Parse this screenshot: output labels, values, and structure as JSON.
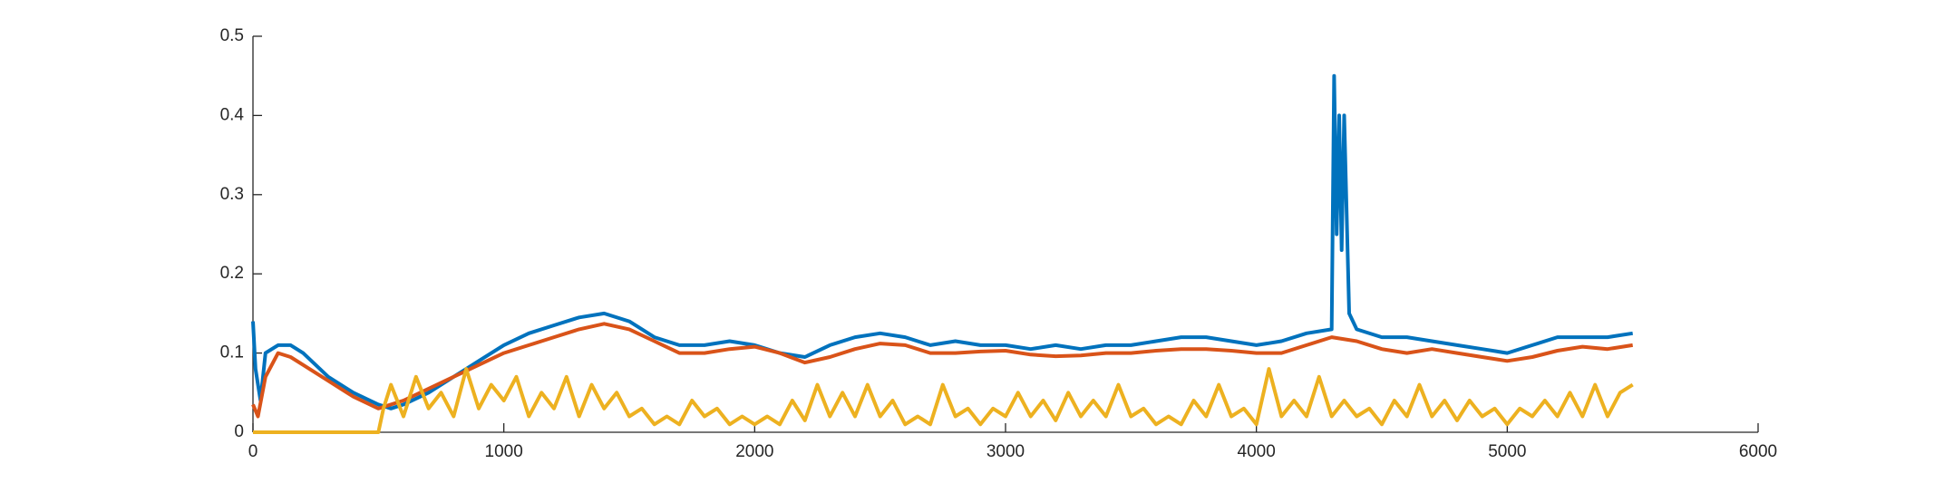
{
  "chart_data": {
    "type": "line",
    "xlim": [
      0,
      6000
    ],
    "xticks": [
      0,
      1000,
      2000,
      3000,
      4000,
      5000,
      6000
    ],
    "ylim": [
      0,
      0.5
    ],
    "yticks": [
      0,
      0.1,
      0.2,
      0.3,
      0.4,
      0.5
    ],
    "series": [
      {
        "color": "#0072bd",
        "x": [
          0,
          10,
          30,
          50,
          100,
          150,
          200,
          300,
          400,
          500,
          550,
          600,
          700,
          800,
          900,
          1000,
          1100,
          1200,
          1300,
          1400,
          1500,
          1600,
          1700,
          1800,
          1900,
          2000,
          2100,
          2200,
          2300,
          2400,
          2500,
          2600,
          2700,
          2800,
          2900,
          3000,
          3100,
          3200,
          3300,
          3400,
          3500,
          3600,
          3700,
          3800,
          3900,
          4000,
          4100,
          4200,
          4300,
          4310,
          4320,
          4330,
          4340,
          4350,
          4370,
          4400,
          4500,
          4600,
          4700,
          4800,
          4900,
          5000,
          5100,
          5200,
          5300,
          5400,
          5500
        ],
        "values": [
          0.14,
          0.08,
          0.04,
          0.1,
          0.11,
          0.11,
          0.1,
          0.07,
          0.05,
          0.035,
          0.03,
          0.035,
          0.05,
          0.07,
          0.09,
          0.11,
          0.125,
          0.135,
          0.145,
          0.15,
          0.14,
          0.12,
          0.11,
          0.11,
          0.115,
          0.11,
          0.1,
          0.095,
          0.11,
          0.12,
          0.125,
          0.12,
          0.11,
          0.115,
          0.11,
          0.11,
          0.105,
          0.11,
          0.105,
          0.11,
          0.11,
          0.115,
          0.12,
          0.12,
          0.115,
          0.11,
          0.115,
          0.125,
          0.13,
          0.45,
          0.25,
          0.4,
          0.23,
          0.4,
          0.15,
          0.13,
          0.12,
          0.12,
          0.115,
          0.11,
          0.105,
          0.1,
          0.11,
          0.12,
          0.12,
          0.12,
          0.125
        ]
      },
      {
        "color": "#d95319",
        "x": [
          0,
          20,
          50,
          100,
          150,
          200,
          300,
          400,
          500,
          600,
          700,
          800,
          900,
          1000,
          1100,
          1200,
          1300,
          1400,
          1500,
          1600,
          1700,
          1800,
          1900,
          2000,
          2100,
          2200,
          2300,
          2400,
          2500,
          2600,
          2700,
          2800,
          2900,
          3000,
          3100,
          3200,
          3300,
          3400,
          3500,
          3600,
          3700,
          3800,
          3900,
          4000,
          4100,
          4200,
          4300,
          4400,
          4500,
          4600,
          4700,
          4800,
          4900,
          5000,
          5100,
          5200,
          5300,
          5400,
          5500
        ],
        "values": [
          0.035,
          0.02,
          0.07,
          0.1,
          0.095,
          0.085,
          0.065,
          0.045,
          0.03,
          0.04,
          0.055,
          0.07,
          0.085,
          0.1,
          0.11,
          0.12,
          0.13,
          0.137,
          0.13,
          0.115,
          0.1,
          0.1,
          0.105,
          0.108,
          0.1,
          0.088,
          0.095,
          0.105,
          0.112,
          0.11,
          0.1,
          0.1,
          0.102,
          0.103,
          0.098,
          0.096,
          0.097,
          0.1,
          0.1,
          0.103,
          0.105,
          0.105,
          0.103,
          0.1,
          0.1,
          0.11,
          0.12,
          0.115,
          0.105,
          0.1,
          0.105,
          0.1,
          0.095,
          0.09,
          0.095,
          0.103,
          0.108,
          0.105,
          0.11
        ]
      },
      {
        "color": "#edb120",
        "x": [
          0,
          100,
          200,
          300,
          400,
          500,
          520,
          550,
          600,
          650,
          700,
          750,
          800,
          850,
          900,
          950,
          1000,
          1050,
          1100,
          1150,
          1200,
          1250,
          1300,
          1350,
          1400,
          1450,
          1500,
          1550,
          1600,
          1650,
          1700,
          1750,
          1800,
          1850,
          1900,
          1950,
          2000,
          2050,
          2100,
          2150,
          2200,
          2250,
          2300,
          2350,
          2400,
          2450,
          2500,
          2550,
          2600,
          2650,
          2700,
          2750,
          2800,
          2850,
          2900,
          2950,
          3000,
          3050,
          3100,
          3150,
          3200,
          3250,
          3300,
          3350,
          3400,
          3450,
          3500,
          3550,
          3600,
          3650,
          3700,
          3750,
          3800,
          3850,
          3900,
          3950,
          4000,
          4050,
          4100,
          4150,
          4200,
          4250,
          4300,
          4350,
          4400,
          4450,
          4500,
          4550,
          4600,
          4650,
          4700,
          4750,
          4800,
          4850,
          4900,
          4950,
          5000,
          5050,
          5100,
          5150,
          5200,
          5250,
          5300,
          5350,
          5400,
          5450,
          5500
        ],
        "values": [
          0,
          0,
          0,
          0,
          0,
          0,
          0.03,
          0.06,
          0.02,
          0.07,
          0.03,
          0.05,
          0.02,
          0.08,
          0.03,
          0.06,
          0.04,
          0.07,
          0.02,
          0.05,
          0.03,
          0.07,
          0.02,
          0.06,
          0.03,
          0.05,
          0.02,
          0.03,
          0.01,
          0.02,
          0.01,
          0.04,
          0.02,
          0.03,
          0.01,
          0.02,
          0.01,
          0.02,
          0.01,
          0.04,
          0.015,
          0.06,
          0.02,
          0.05,
          0.02,
          0.06,
          0.02,
          0.04,
          0.01,
          0.02,
          0.01,
          0.06,
          0.02,
          0.03,
          0.01,
          0.03,
          0.02,
          0.05,
          0.02,
          0.04,
          0.015,
          0.05,
          0.02,
          0.04,
          0.02,
          0.06,
          0.02,
          0.03,
          0.01,
          0.02,
          0.01,
          0.04,
          0.02,
          0.06,
          0.02,
          0.03,
          0.01,
          0.08,
          0.02,
          0.04,
          0.02,
          0.07,
          0.02,
          0.04,
          0.02,
          0.03,
          0.01,
          0.04,
          0.02,
          0.06,
          0.02,
          0.04,
          0.015,
          0.04,
          0.02,
          0.03,
          0.01,
          0.03,
          0.02,
          0.04,
          0.02,
          0.05,
          0.02,
          0.06,
          0.02,
          0.05,
          0.06
        ]
      }
    ]
  }
}
